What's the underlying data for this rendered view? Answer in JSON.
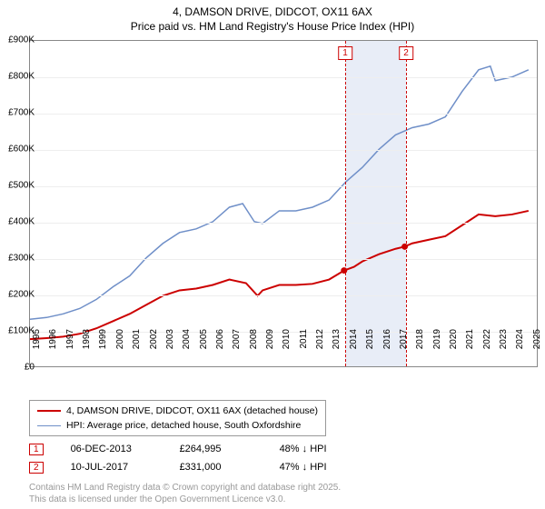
{
  "title_line1": "4, DAMSON DRIVE, DIDCOT, OX11 6AX",
  "title_line2": "Price paid vs. HM Land Registry's House Price Index (HPI)",
  "chart": {
    "type": "line",
    "background_color": "#ffffff",
    "grid_color": "#eeeeee",
    "plot_border_color": "#888888",
    "x_start_year": 1995,
    "x_end_year": 2025.5,
    "ylim": [
      0,
      900
    ],
    "ytick_step": 100,
    "ytick_labels": [
      "£0",
      "£100K",
      "£200K",
      "£300K",
      "£400K",
      "£500K",
      "£600K",
      "£700K",
      "£800K",
      "£900K"
    ],
    "xtick_years": [
      1995,
      1996,
      1997,
      1998,
      1999,
      2000,
      2001,
      2002,
      2003,
      2004,
      2005,
      2006,
      2007,
      2008,
      2009,
      2010,
      2011,
      2012,
      2013,
      2014,
      2015,
      2016,
      2017,
      2018,
      2019,
      2020,
      2021,
      2022,
      2023,
      2024,
      2025
    ],
    "shade": {
      "start_year": 2013.9,
      "end_year": 2017.55,
      "color": "#e8edf7"
    },
    "series": [
      {
        "name": "price_paid",
        "label": "4, DAMSON DRIVE, DIDCOT, OX11 6AX (detached house)",
        "color": "#cc0000",
        "line_width": 2,
        "data": [
          [
            1995,
            75
          ],
          [
            1996,
            78
          ],
          [
            1997,
            82
          ],
          [
            1998,
            90
          ],
          [
            1999,
            105
          ],
          [
            2000,
            125
          ],
          [
            2001,
            145
          ],
          [
            2002,
            170
          ],
          [
            2003,
            195
          ],
          [
            2004,
            210
          ],
          [
            2005,
            215
          ],
          [
            2006,
            225
          ],
          [
            2007,
            240
          ],
          [
            2008,
            230
          ],
          [
            2008.7,
            195
          ],
          [
            2009,
            210
          ],
          [
            2010,
            225
          ],
          [
            2011,
            225
          ],
          [
            2012,
            228
          ],
          [
            2013,
            240
          ],
          [
            2013.9,
            265
          ],
          [
            2014.5,
            275
          ],
          [
            2015,
            290
          ],
          [
            2016,
            310
          ],
          [
            2017,
            325
          ],
          [
            2017.55,
            331
          ],
          [
            2018,
            340
          ],
          [
            2019,
            350
          ],
          [
            2020,
            360
          ],
          [
            2021,
            390
          ],
          [
            2022,
            420
          ],
          [
            2023,
            415
          ],
          [
            2024,
            420
          ],
          [
            2025,
            430
          ]
        ]
      },
      {
        "name": "hpi",
        "label": "HPI: Average price, detached house, South Oxfordshire",
        "color": "#6f8fc8",
        "line_width": 1.5,
        "data": [
          [
            1995,
            130
          ],
          [
            1996,
            135
          ],
          [
            1997,
            145
          ],
          [
            1998,
            160
          ],
          [
            1999,
            185
          ],
          [
            2000,
            220
          ],
          [
            2001,
            250
          ],
          [
            2002,
            300
          ],
          [
            2003,
            340
          ],
          [
            2004,
            370
          ],
          [
            2005,
            380
          ],
          [
            2006,
            400
          ],
          [
            2007,
            440
          ],
          [
            2007.8,
            450
          ],
          [
            2008.5,
            400
          ],
          [
            2009,
            395
          ],
          [
            2010,
            430
          ],
          [
            2011,
            430
          ],
          [
            2012,
            440
          ],
          [
            2013,
            460
          ],
          [
            2014,
            510
          ],
          [
            2015,
            550
          ],
          [
            2016,
            600
          ],
          [
            2017,
            640
          ],
          [
            2018,
            660
          ],
          [
            2019,
            670
          ],
          [
            2020,
            690
          ],
          [
            2021,
            760
          ],
          [
            2022,
            820
          ],
          [
            2022.7,
            830
          ],
          [
            2023,
            790
          ],
          [
            2024,
            800
          ],
          [
            2025,
            820
          ]
        ]
      }
    ],
    "sales": [
      {
        "num": "1",
        "year": 2013.9,
        "date": "06-DEC-2013",
        "price": "£264,995",
        "delta": "48% ↓ HPI",
        "value_k": 265
      },
      {
        "num": "2",
        "year": 2017.55,
        "date": "10-JUL-2017",
        "price": "£331,000",
        "delta": "47% ↓ HPI",
        "value_k": 331
      }
    ],
    "sale_line_color": "#cc0000",
    "axis_font_size": 10
  },
  "footer_line1": "Contains HM Land Registry data © Crown copyright and database right 2025.",
  "footer_line2": "This data is licensed under the Open Government Licence v3.0."
}
